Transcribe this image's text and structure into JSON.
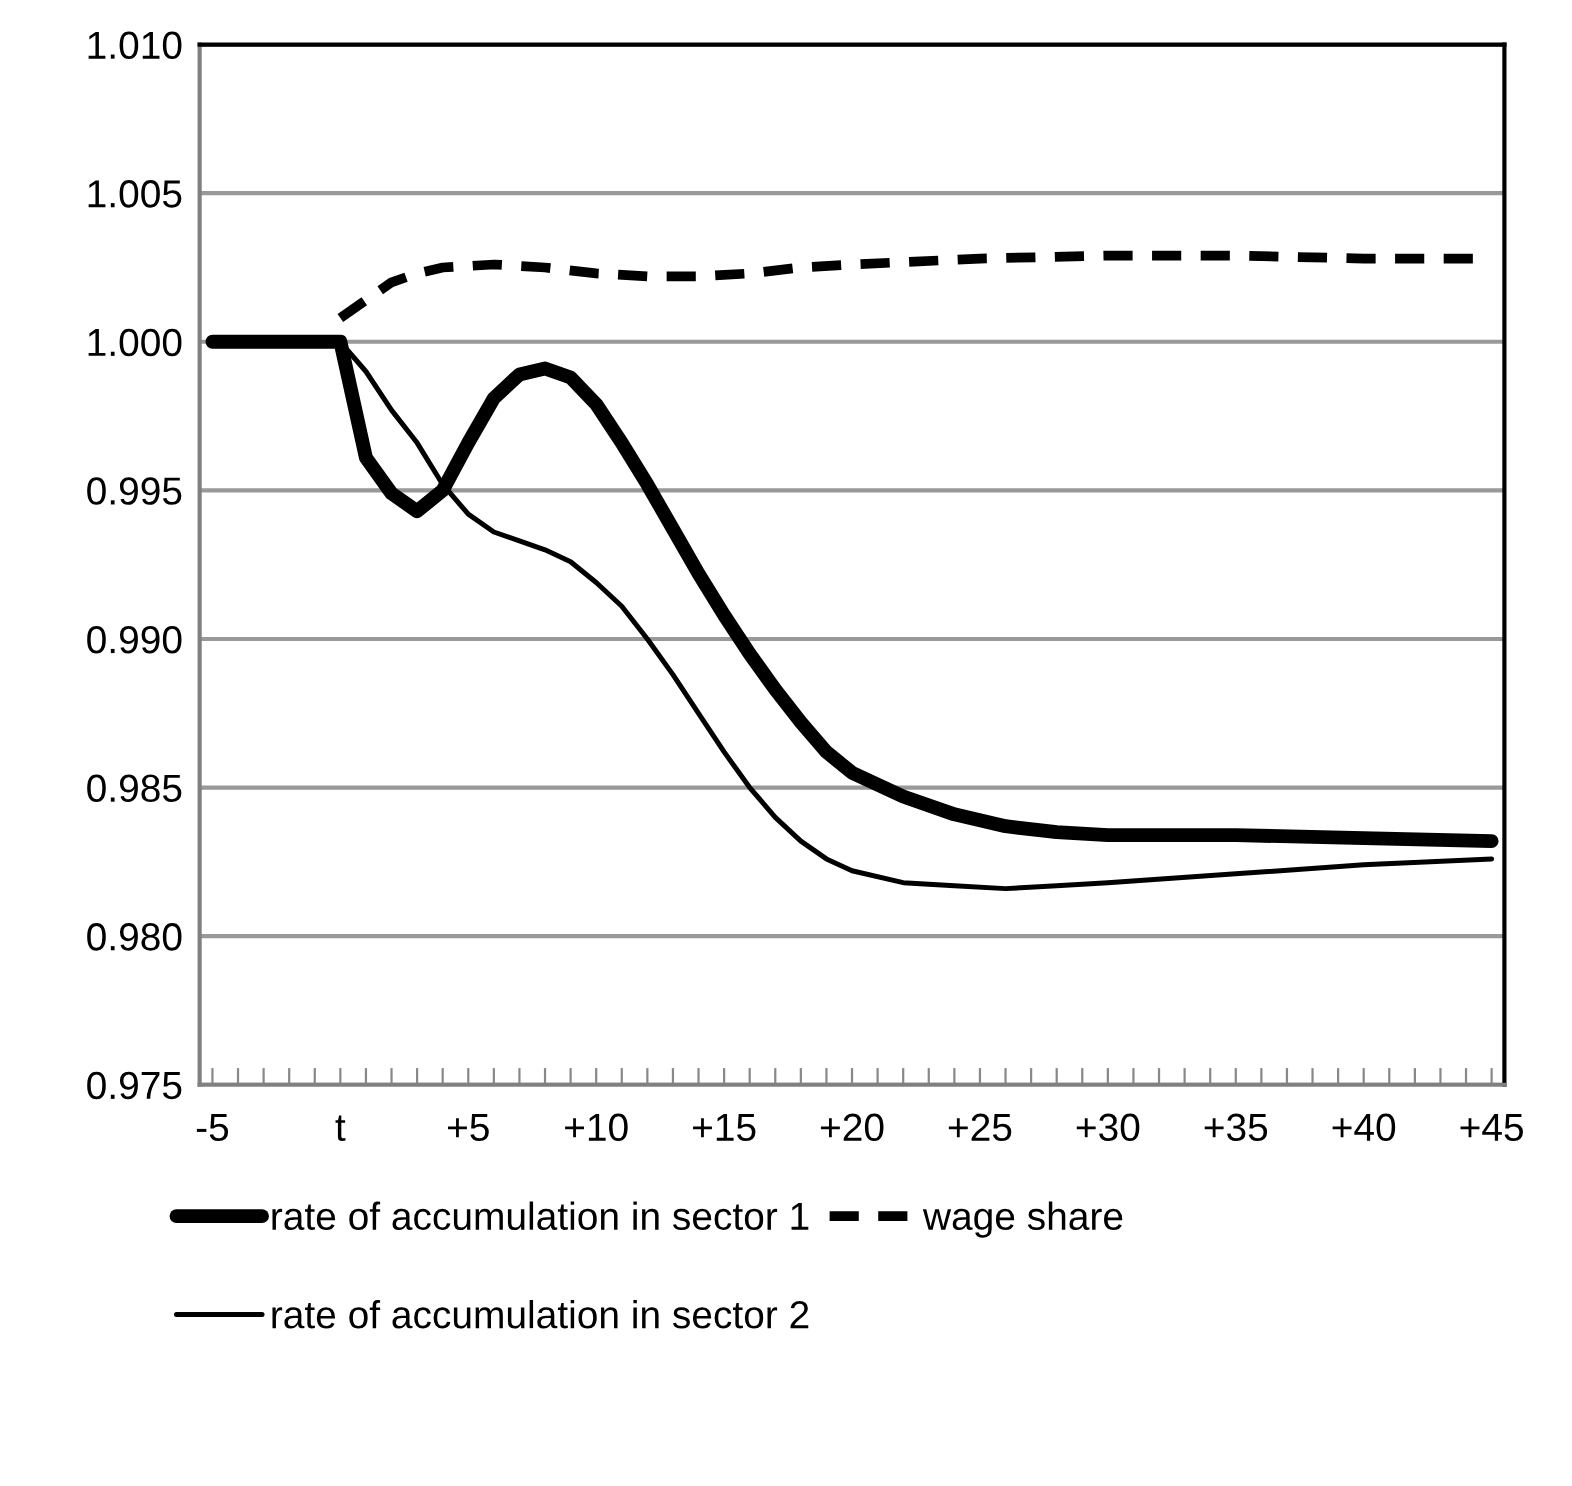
{
  "chart_data": {
    "type": "line",
    "xlim": [
      -5.5,
      45.5
    ],
    "xticks": [
      {
        "value": -5,
        "label": "-5"
      },
      {
        "value": 0,
        "label": "t"
      },
      {
        "value": 5,
        "label": "+5"
      },
      {
        "value": 10,
        "label": "+10"
      },
      {
        "value": 15,
        "label": "+15"
      },
      {
        "value": 20,
        "label": "+20"
      },
      {
        "value": 25,
        "label": "+25"
      },
      {
        "value": 30,
        "label": "+30"
      },
      {
        "value": 35,
        "label": "+35"
      },
      {
        "value": 40,
        "label": "+40"
      },
      {
        "value": 45,
        "label": "+45"
      },
      {
        "value": -4,
        "label": null
      },
      {
        "value": -3,
        "label": null
      },
      {
        "value": -2,
        "label": null
      },
      {
        "value": -1,
        "label": null
      },
      {
        "value": 1,
        "label": null
      },
      {
        "value": 2,
        "label": null
      },
      {
        "value": 3,
        "label": null
      },
      {
        "value": 4,
        "label": null
      },
      {
        "value": 6,
        "label": null
      },
      {
        "value": 7,
        "label": null
      },
      {
        "value": 8,
        "label": null
      },
      {
        "value": 9,
        "label": null
      },
      {
        "value": 11,
        "label": null
      },
      {
        "value": 12,
        "label": null
      },
      {
        "value": 13,
        "label": null
      },
      {
        "value": 14,
        "label": null
      },
      {
        "value": 16,
        "label": null
      },
      {
        "value": 17,
        "label": null
      },
      {
        "value": 18,
        "label": null
      },
      {
        "value": 19,
        "label": null
      },
      {
        "value": 21,
        "label": null
      },
      {
        "value": 22,
        "label": null
      },
      {
        "value": 23,
        "label": null
      },
      {
        "value": 24,
        "label": null
      },
      {
        "value": 26,
        "label": null
      },
      {
        "value": 27,
        "label": null
      },
      {
        "value": 28,
        "label": null
      },
      {
        "value": 29,
        "label": null
      },
      {
        "value": 31,
        "label": null
      },
      {
        "value": 32,
        "label": null
      },
      {
        "value": 33,
        "label": null
      },
      {
        "value": 34,
        "label": null
      },
      {
        "value": 36,
        "label": null
      },
      {
        "value": 37,
        "label": null
      },
      {
        "value": 38,
        "label": null
      },
      {
        "value": 39,
        "label": null
      },
      {
        "value": 41,
        "label": null
      },
      {
        "value": 42,
        "label": null
      },
      {
        "value": 43,
        "label": null
      },
      {
        "value": 44,
        "label": null
      }
    ],
    "ylim": [
      0.975,
      1.01
    ],
    "yticks": [
      {
        "value": 0.975,
        "label": "0.975"
      },
      {
        "value": 0.98,
        "label": "0.980"
      },
      {
        "value": 0.985,
        "label": "0.985"
      },
      {
        "value": 0.99,
        "label": "0.990"
      },
      {
        "value": 0.995,
        "label": "0.995"
      },
      {
        "value": 1.0,
        "label": "1.000"
      },
      {
        "value": 1.005,
        "label": "1.005"
      },
      {
        "value": 1.01,
        "label": "1.010"
      }
    ],
    "grid": "y",
    "legend": "bottom",
    "marker": "none",
    "series": [
      {
        "name": "rate of accumulation in sector 1",
        "color": "#000000",
        "line_style": "solid",
        "x": [
          -5,
          0,
          1,
          2,
          3,
          4,
          5,
          6,
          7,
          8,
          9,
          10,
          11,
          12,
          13,
          14,
          15,
          16,
          17,
          18,
          19,
          20,
          22,
          24,
          26,
          28,
          30,
          35,
          40,
          45
        ],
        "values": [
          1.0,
          1.0,
          0.9961,
          0.9949,
          0.9943,
          0.995,
          0.9966,
          0.9981,
          0.9989,
          0.9991,
          0.9988,
          0.9979,
          0.9966,
          0.9952,
          0.9937,
          0.9922,
          0.9908,
          0.9895,
          0.9883,
          0.9872,
          0.9862,
          0.9855,
          0.9847,
          0.9841,
          0.9837,
          0.9835,
          0.9834,
          0.9834,
          0.9833,
          0.9832
        ]
      },
      {
        "name": "rate of accumulation in sector 2",
        "color": "#000000",
        "line_style": "solid",
        "x": [
          -5,
          0,
          1,
          2,
          3,
          4,
          5,
          6,
          7,
          8,
          9,
          10,
          11,
          12,
          13,
          14,
          15,
          16,
          17,
          18,
          19,
          20,
          22,
          24,
          26,
          28,
          30,
          35,
          40,
          45
        ],
        "values": [
          1.0,
          1.0,
          0.999,
          0.9977,
          0.9966,
          0.9952,
          0.9942,
          0.9936,
          0.9933,
          0.993,
          0.9926,
          0.9919,
          0.9911,
          0.99,
          0.9888,
          0.9875,
          0.9862,
          0.985,
          0.984,
          0.9832,
          0.9826,
          0.9822,
          0.9818,
          0.9817,
          0.9816,
          0.9817,
          0.9818,
          0.9821,
          0.9824,
          0.9826
        ]
      },
      {
        "name": "wage share",
        "color": "#000000",
        "line_style": "dashed",
        "x": [
          0,
          1,
          2,
          3,
          4,
          6,
          8,
          10,
          12,
          14,
          16,
          18,
          20,
          25,
          30,
          35,
          40,
          45
        ],
        "values": [
          1.0008,
          1.0014,
          1.002,
          1.0023,
          1.0025,
          1.0026,
          1.0025,
          1.0023,
          1.0022,
          1.0022,
          1.0023,
          1.0025,
          1.0026,
          1.0028,
          1.0029,
          1.0029,
          1.0028,
          1.0028
        ]
      }
    ]
  }
}
